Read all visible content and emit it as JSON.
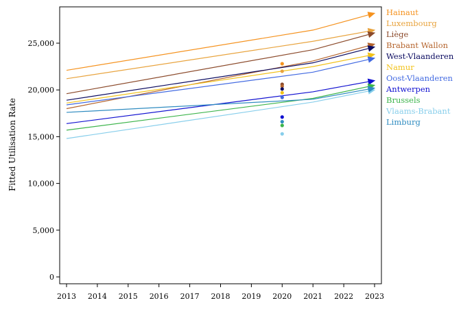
{
  "chart_data": {
    "type": "line",
    "title": "",
    "xlabel": "",
    "ylabel": "Fitted Utilisation Rate",
    "xlim": [
      2013,
      2023
    ],
    "ylim": [
      0,
      29000
    ],
    "x_ticks": [
      2013,
      2014,
      2015,
      2016,
      2017,
      2018,
      2019,
      2020,
      2021,
      2022,
      2023
    ],
    "y_ticks": [
      0,
      5000,
      10000,
      15000,
      20000,
      25000
    ],
    "y_tick_labels": [
      "0",
      "5,000",
      "10,000",
      "15,000",
      "20,000",
      "25,000"
    ],
    "grid": false,
    "legend_position": "right",
    "marker_year": 2020,
    "series": [
      {
        "name": "Hainaut",
        "color": "#F5921E",
        "points": [
          [
            2013,
            22100
          ],
          [
            2021,
            26400
          ],
          [
            2023,
            28200
          ]
        ],
        "marker": 22800
      },
      {
        "name": "Luxembourg",
        "color": "#E8A33D",
        "points": [
          [
            2013,
            21200
          ],
          [
            2021,
            25200
          ],
          [
            2023,
            26400
          ]
        ],
        "marker": 22000
      },
      {
        "name": "Liège",
        "color": "#8B4A2B",
        "points": [
          [
            2013,
            19600
          ],
          [
            2021,
            24300
          ],
          [
            2023,
            26100
          ]
        ],
        "marker": 20600
      },
      {
        "name": "Brabant Wallon",
        "color": "#B5652E",
        "points": [
          [
            2013,
            18000
          ],
          [
            2021,
            23100
          ],
          [
            2023,
            24900
          ]
        ],
        "marker": 20400
      },
      {
        "name": "West-Vlaanderen",
        "color": "#0B0B60",
        "points": [
          [
            2013,
            18900
          ],
          [
            2021,
            22900
          ],
          [
            2023,
            24600
          ]
        ],
        "marker": 20100
      },
      {
        "name": "Namur",
        "color": "#F2C21A",
        "points": [
          [
            2013,
            18600
          ],
          [
            2021,
            22500
          ],
          [
            2023,
            23800
          ]
        ],
        "marker": 19700
      },
      {
        "name": "Oost-Vlaanderen",
        "color": "#4169E1",
        "points": [
          [
            2013,
            18400
          ],
          [
            2021,
            21900
          ],
          [
            2023,
            23400
          ]
        ],
        "marker": 19200
      },
      {
        "name": "Antwerpen",
        "color": "#1010D0",
        "points": [
          [
            2013,
            16400
          ],
          [
            2021,
            19800
          ],
          [
            2023,
            21000
          ]
        ],
        "marker": 17100
      },
      {
        "name": "Brussels",
        "color": "#3CB44B",
        "points": [
          [
            2013,
            15700
          ],
          [
            2021,
            19100
          ],
          [
            2023,
            20500
          ]
        ],
        "marker": 16200
      },
      {
        "name": "Vlaams-Brabant",
        "color": "#87CEEB",
        "points": [
          [
            2013,
            14800
          ],
          [
            2021,
            18700
          ],
          [
            2023,
            20000
          ]
        ],
        "marker": 15300
      },
      {
        "name": "Limburg",
        "color": "#2E8BC0",
        "points": [
          [
            2013,
            17600
          ],
          [
            2021,
            19000
          ],
          [
            2023,
            20200
          ]
        ],
        "marker": 16600
      }
    ]
  }
}
